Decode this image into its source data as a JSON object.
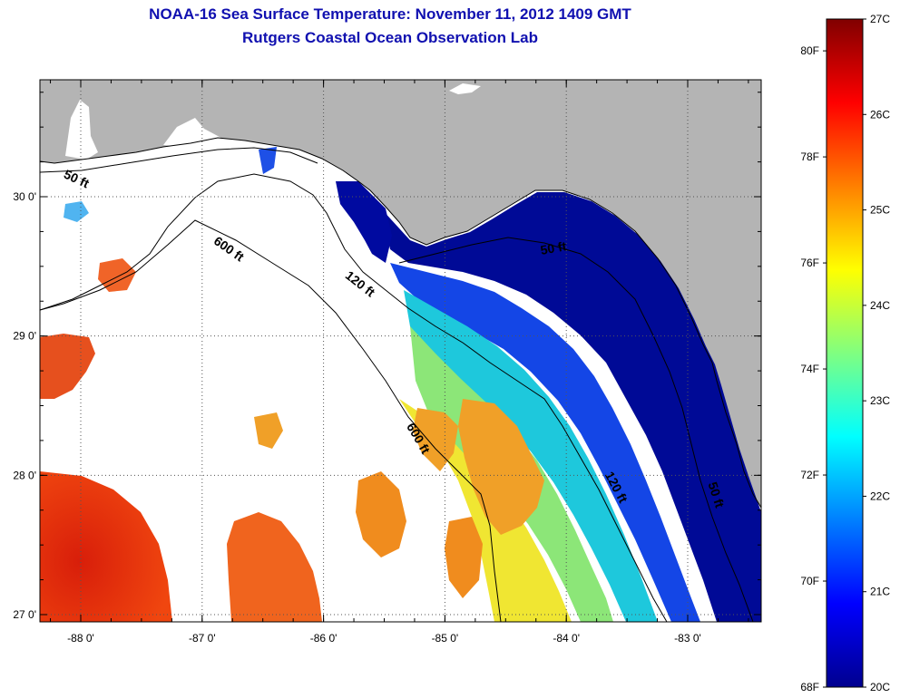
{
  "title": {
    "line1": "NOAA-16 Sea Surface Temperature:  November 11, 2012 1409 GMT",
    "line2": "Rutgers Coastal Ocean Observation Lab"
  },
  "map": {
    "lon_range": [
      -88.35,
      -82.45
    ],
    "lat_range": [
      26.97,
      30.85
    ],
    "lon_ticks": [
      {
        "value": -88,
        "label": "-88 0'"
      },
      {
        "value": -87,
        "label": "-87 0'"
      },
      {
        "value": -86,
        "label": "-86 0'"
      },
      {
        "value": -85,
        "label": "-85 0'"
      },
      {
        "value": -84,
        "label": "-84 0'"
      },
      {
        "value": -83,
        "label": "-83 0'"
      }
    ],
    "lat_ticks": [
      {
        "value": 30,
        "label": "30 0'"
      },
      {
        "value": 29,
        "label": "29 0'"
      },
      {
        "value": 28,
        "label": "28 0'"
      },
      {
        "value": 27,
        "label": "27 0'"
      }
    ],
    "land_color": "#b4b4b4",
    "no_data_color": "#ffffff",
    "contour_labels": [
      {
        "text": "50 ft",
        "lon": -88.05,
        "lat": 30.1,
        "rotate": 25
      },
      {
        "text": "600 ft",
        "lon": -86.8,
        "lat": 29.6,
        "rotate": 35
      },
      {
        "text": "120 ft",
        "lon": -85.72,
        "lat": 29.35,
        "rotate": 38
      },
      {
        "text": "50 ft",
        "lon": -84.1,
        "lat": 29.6,
        "rotate": -10
      },
      {
        "text": "600 ft",
        "lon": -85.25,
        "lat": 28.25,
        "rotate": 60
      },
      {
        "text": "120 ft",
        "lon": -83.62,
        "lat": 27.9,
        "rotate": 62
      },
      {
        "text": "50 ft",
        "lon": -82.8,
        "lat": 27.85,
        "rotate": 72
      }
    ]
  },
  "colorbar": {
    "min_c": 20,
    "max_c": 27,
    "colormap": "jet",
    "celsius_labels": [
      "27C",
      "26C",
      "25C",
      "24C",
      "23C",
      "22C",
      "21C",
      "20C"
    ],
    "fahrenheit_ticks": [
      {
        "value": 80,
        "label": "80F"
      },
      {
        "value": 78,
        "label": "78F"
      },
      {
        "value": 76,
        "label": "76F"
      },
      {
        "value": 74,
        "label": "74F"
      },
      {
        "value": 72,
        "label": "72F"
      },
      {
        "value": 70,
        "label": "70F"
      },
      {
        "value": 68,
        "label": "68F"
      }
    ]
  }
}
